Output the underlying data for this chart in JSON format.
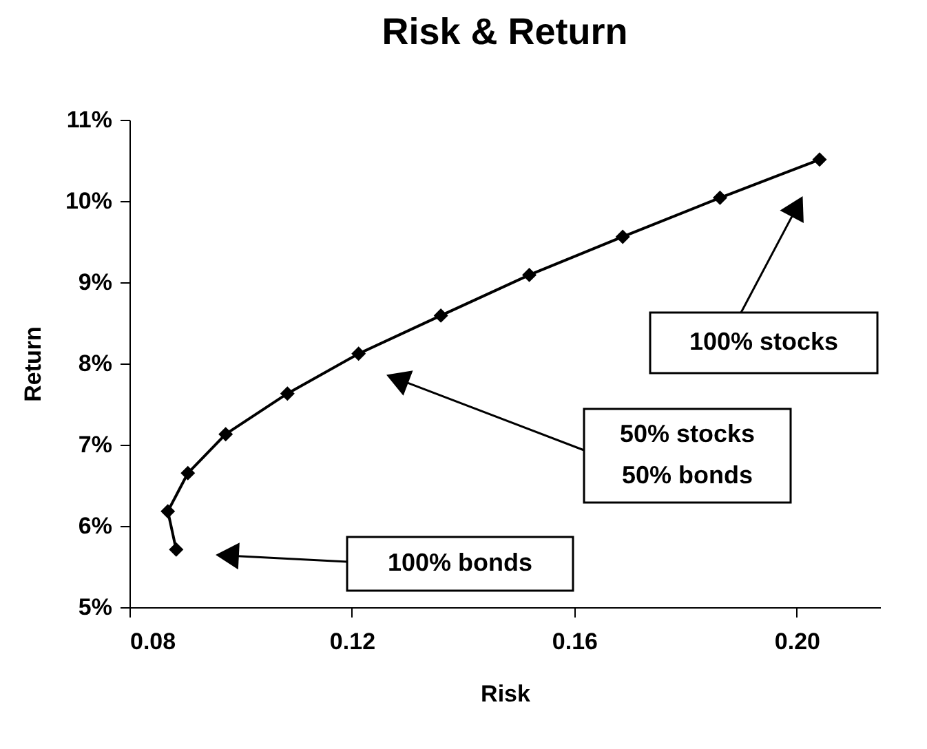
{
  "chart_data": {
    "type": "line",
    "title": "Risk & Return",
    "xlabel": "Risk",
    "ylabel": "Return",
    "x": [
      0.0884,
      0.0869,
      0.0905,
      0.0973,
      0.1084,
      0.1212,
      0.136,
      0.1519,
      0.1687,
      0.1862,
      0.2041
    ],
    "series": [
      {
        "color": "#000000",
        "values": [
          5.71,
          6.18,
          6.65,
          7.13,
          7.63,
          8.12,
          8.59,
          9.09,
          9.56,
          10.04,
          10.51
        ]
      }
    ],
    "marker": "diamond",
    "line_style": "solid",
    "xlim": [
      0.08,
      0.215
    ],
    "xticks": [
      {
        "value": 0.08,
        "label": "0.08"
      },
      {
        "value": 0.12,
        "label": "0.12"
      },
      {
        "value": 0.16,
        "label": "0.16"
      },
      {
        "value": 0.2,
        "label": "0.20"
      }
    ],
    "ylim": [
      5,
      11
    ],
    "yticks": [
      {
        "value": 5,
        "label": "5%"
      },
      {
        "value": 6,
        "label": "6%"
      },
      {
        "value": 7,
        "label": "7%"
      },
      {
        "value": 8,
        "label": "8%"
      },
      {
        "value": 9,
        "label": "9%"
      },
      {
        "value": 10,
        "label": "10%"
      },
      {
        "value": 11,
        "label": "11%"
      }
    ],
    "annotations": [
      "100% stocks",
      "50% stocks\n50% bonds",
      "100% bonds"
    ]
  }
}
